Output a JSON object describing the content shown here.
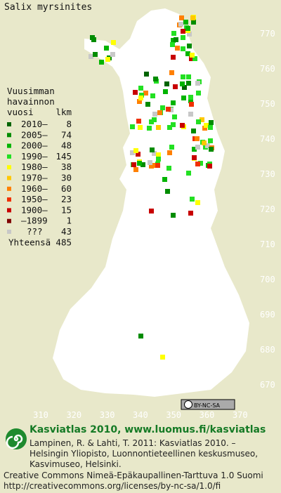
{
  "map": {
    "title": "Salix myrsinites",
    "x_labels": [
      310,
      320,
      330,
      340,
      350,
      360,
      370
    ],
    "y_labels": [
      770,
      760,
      750,
      740,
      730,
      720,
      710,
      700,
      690,
      680,
      670
    ],
    "legend": {
      "heading": [
        "Vuusimman",
        "havainnon",
        "vuosi"
      ],
      "count_heading": "lkm",
      "rows": [
        {
          "label": "2010–",
          "count": 8,
          "color": "#006400"
        },
        {
          "label": "2005–",
          "count": 74,
          "color": "#008c00"
        },
        {
          "label": "2000–",
          "count": 48,
          "color": "#00b400"
        },
        {
          "label": "1990–",
          "count": 145,
          "color": "#22e022"
        },
        {
          "label": "1980–",
          "count": 38,
          "color": "#ffff00"
        },
        {
          "label": "1970–",
          "count": 30,
          "color": "#ffc800"
        },
        {
          "label": "1960–",
          "count": 60,
          "color": "#ff8000"
        },
        {
          "label": "1950–",
          "count": 23,
          "color": "#f03000"
        },
        {
          "label": "1900–",
          "count": 15,
          "color": "#c80000"
        },
        {
          "label": "–1899",
          "count": 1,
          "color": "#800000"
        },
        {
          "label": "???",
          "count": 43,
          "color": "#c8c8c8"
        }
      ],
      "total_label": "Yhteensä",
      "total": 485
    },
    "license_badge": "BY-NC-SA"
  },
  "footer": {
    "title": "Kasviatlas 2010, www.luomus.fi/kasviatlas",
    "citation": [
      "Lampinen, R. & Lahti, T. 2011: Kasviatlas 2010. –",
      "Helsingin Yliopisto, Luonnontieteellinen keskusmuseo,",
      "Kasvimuseo, Helsinki."
    ],
    "license": [
      "Creative Commons Nimeä-Epäkaupallinen-Tarttuva 1.0 Suomi",
      "http://creativecommons.org/licenses/by-nc-sa/1.0/fi"
    ]
  }
}
